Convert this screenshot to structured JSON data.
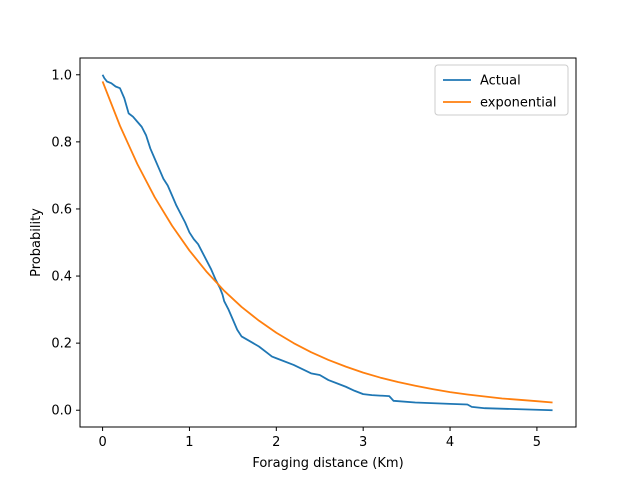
{
  "chart_data": {
    "type": "line",
    "xlabel": "Foraging distance (Km)",
    "ylabel": "Probability",
    "xlim": [
      -0.26,
      5.45
    ],
    "ylim": [
      -0.05,
      1.05
    ],
    "xticks": [
      0,
      1,
      2,
      3,
      4,
      5
    ],
    "yticks": [
      0.0,
      0.2,
      0.4,
      0.6,
      0.8,
      1.0
    ],
    "xtick_labels": [
      "0",
      "1",
      "2",
      "3",
      "4",
      "5"
    ],
    "ytick_labels": [
      "0.0",
      "0.2",
      "0.4",
      "0.6",
      "0.8",
      "1.0"
    ],
    "grid": false,
    "legend_position": "top-right",
    "series": [
      {
        "name": "Actual",
        "color": "#1f77b4",
        "x": [
          0.0,
          0.02,
          0.05,
          0.1,
          0.15,
          0.2,
          0.25,
          0.3,
          0.35,
          0.4,
          0.45,
          0.5,
          0.55,
          0.6,
          0.65,
          0.7,
          0.75,
          0.8,
          0.85,
          0.9,
          0.95,
          1.0,
          1.05,
          1.1,
          1.15,
          1.2,
          1.25,
          1.3,
          1.35,
          1.38,
          1.4,
          1.45,
          1.5,
          1.55,
          1.6,
          1.7,
          1.8,
          1.9,
          1.95,
          2.0,
          2.2,
          2.4,
          2.5,
          2.6,
          2.8,
          2.9,
          3.0,
          3.1,
          3.3,
          3.35,
          3.6,
          4.0,
          4.2,
          4.25,
          4.4,
          5.18
        ],
        "y": [
          1.0,
          0.99,
          0.98,
          0.975,
          0.965,
          0.96,
          0.93,
          0.885,
          0.875,
          0.86,
          0.845,
          0.82,
          0.78,
          0.75,
          0.72,
          0.69,
          0.67,
          0.64,
          0.61,
          0.585,
          0.56,
          0.53,
          0.51,
          0.495,
          0.47,
          0.445,
          0.42,
          0.39,
          0.365,
          0.345,
          0.325,
          0.3,
          0.27,
          0.24,
          0.22,
          0.205,
          0.19,
          0.17,
          0.16,
          0.155,
          0.135,
          0.11,
          0.105,
          0.09,
          0.07,
          0.058,
          0.048,
          0.045,
          0.042,
          0.028,
          0.023,
          0.019,
          0.017,
          0.01,
          0.006,
          0.0
        ]
      },
      {
        "name": "exponential",
        "color": "#ff7f0e",
        "x": [
          0.0,
          0.2,
          0.4,
          0.6,
          0.8,
          1.0,
          1.2,
          1.4,
          1.6,
          1.8,
          2.0,
          2.2,
          2.4,
          2.6,
          2.8,
          3.0,
          3.2,
          3.4,
          3.6,
          3.8,
          4.0,
          4.2,
          4.4,
          4.6,
          4.8,
          5.0,
          5.18
        ],
        "y": [
          0.98,
          0.848,
          0.734,
          0.635,
          0.55,
          0.476,
          0.412,
          0.356,
          0.308,
          0.267,
          0.231,
          0.2,
          0.173,
          0.15,
          0.13,
          0.112,
          0.097,
          0.084,
          0.073,
          0.063,
          0.054,
          0.047,
          0.041,
          0.035,
          0.031,
          0.027,
          0.023
        ]
      }
    ]
  }
}
